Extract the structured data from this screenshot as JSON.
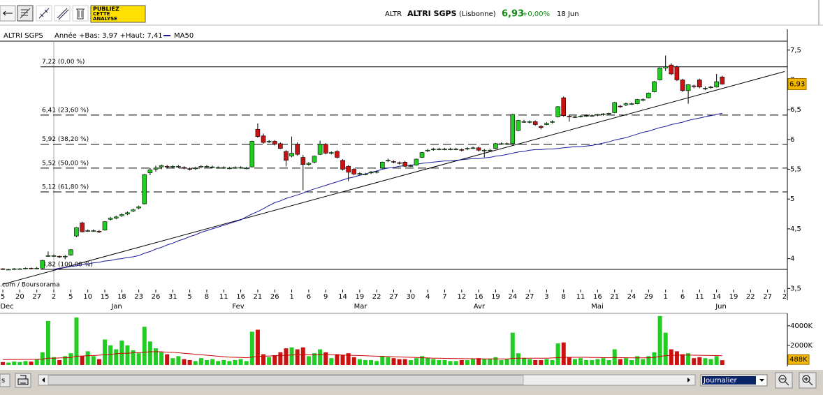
{
  "toolbar": {
    "button": [
      "PUBLIEZ",
      "CETTE",
      "ANALYSE"
    ]
  },
  "header": {
    "code": "ALTR",
    "name": "ALTRI SGPS",
    "market": "(Lisbonne)",
    "price": "6,93",
    "change": "+0,00%",
    "date": "18 Jun"
  },
  "footer": {
    "left_button": "s",
    "period": "Journalier"
  },
  "chart_data": {
    "type": "candlestick",
    "title": "ALTRI SGPS",
    "subtitle": "Année +Bas: 3,97 +Haut: 7,41",
    "source": ".com / Boursorama",
    "up_color": "#22cc22",
    "down_color": "#cc1111",
    "months": [
      "Dec",
      "Jan",
      "Fev",
      "Mar",
      "Avr",
      "Mai",
      "Jun"
    ],
    "categories": [
      "5",
      null,
      null,
      "20",
      null,
      null,
      "27",
      null,
      null,
      "2",
      null,
      null,
      "5",
      null,
      null,
      "10",
      null,
      null,
      "15",
      null,
      null,
      "18",
      null,
      null,
      "23",
      null,
      null,
      "26",
      null,
      null,
      "31",
      null,
      null,
      "5",
      null,
      null,
      "8",
      null,
      null,
      "11",
      null,
      null,
      "16",
      null,
      null,
      "21",
      null,
      null,
      "26",
      null,
      null,
      "1",
      null,
      null,
      "6",
      null,
      null,
      "9",
      null,
      null,
      "14",
      null,
      null,
      "19",
      null,
      null,
      "22",
      null,
      null,
      "27",
      null,
      null,
      "30",
      null,
      null,
      "4",
      null,
      null,
      "7",
      null,
      null,
      "12",
      null,
      null,
      "16",
      null,
      null,
      "19",
      null,
      null,
      "24",
      null,
      null,
      "27",
      null,
      null,
      "3",
      null,
      null,
      "8",
      null,
      null,
      "11",
      null,
      null,
      "16",
      null,
      null,
      "21",
      null,
      null,
      "24",
      null,
      null,
      "29",
      null,
      null,
      "1",
      null,
      null,
      "6",
      null,
      null,
      "11",
      null,
      null,
      "14",
      null,
      null,
      "19",
      null,
      null,
      "22",
      null,
      null,
      "27",
      null,
      null,
      "2"
    ],
    "candles": [
      [
        3.83,
        3.84,
        3.81,
        3.82
      ],
      [
        3.82,
        3.83,
        3.81,
        3.82
      ],
      [
        3.82,
        3.84,
        3.81,
        3.83
      ],
      [
        3.83,
        3.84,
        3.82,
        3.83
      ],
      [
        3.83,
        3.85,
        3.82,
        3.84
      ],
      [
        3.84,
        3.85,
        3.82,
        3.83
      ],
      [
        3.83,
        3.86,
        3.82,
        3.84
      ],
      [
        3.84,
        3.98,
        3.83,
        3.97
      ],
      [
        4.05,
        4.12,
        4.03,
        4.05
      ],
      [
        4.05,
        4.07,
        4.03,
        4.05
      ],
      [
        4.04,
        4.05,
        4.01,
        4.03
      ],
      [
        4.03,
        4.06,
        3.99,
        4.04
      ],
      [
        4.06,
        4.16,
        4.05,
        4.15
      ],
      [
        4.38,
        4.53,
        4.36,
        4.52
      ],
      [
        4.6,
        4.62,
        4.44,
        4.45
      ],
      [
        4.46,
        4.49,
        4.45,
        4.47
      ],
      [
        4.47,
        4.49,
        4.45,
        4.47
      ],
      [
        4.46,
        4.48,
        4.43,
        4.45
      ],
      [
        4.48,
        4.63,
        4.47,
        4.62
      ],
      [
        4.66,
        4.7,
        4.64,
        4.68
      ],
      [
        4.68,
        4.72,
        4.66,
        4.7
      ],
      [
        4.72,
        4.76,
        4.7,
        4.74
      ],
      [
        4.75,
        4.79,
        4.73,
        4.77
      ],
      [
        4.8,
        4.84,
        4.78,
        4.82
      ],
      [
        4.85,
        4.89,
        4.83,
        4.87
      ],
      [
        4.92,
        5.42,
        4.91,
        5.41
      ],
      [
        5.44,
        5.52,
        5.4,
        5.49
      ],
      [
        5.5,
        5.56,
        5.46,
        5.52
      ],
      [
        5.54,
        5.58,
        5.5,
        5.56
      ],
      [
        5.55,
        5.57,
        5.51,
        5.54
      ],
      [
        5.54,
        5.57,
        5.52,
        5.55
      ],
      [
        5.55,
        5.57,
        5.52,
        5.55
      ],
      [
        5.53,
        5.55,
        5.5,
        5.52
      ],
      [
        5.51,
        5.53,
        5.48,
        5.5
      ],
      [
        5.51,
        5.54,
        5.49,
        5.52
      ],
      [
        5.54,
        5.57,
        5.52,
        5.55
      ],
      [
        5.55,
        5.57,
        5.53,
        5.55
      ],
      [
        5.54,
        5.56,
        5.52,
        5.54
      ],
      [
        5.53,
        5.55,
        5.51,
        5.53
      ],
      [
        5.53,
        5.55,
        5.51,
        5.53
      ],
      [
        5.52,
        5.54,
        5.5,
        5.52
      ],
      [
        5.53,
        5.55,
        5.51,
        5.53
      ],
      [
        5.53,
        5.55,
        5.51,
        5.53
      ],
      [
        5.52,
        5.54,
        5.5,
        5.52
      ],
      [
        5.54,
        5.98,
        5.53,
        5.97
      ],
      [
        6.17,
        6.27,
        6.03,
        6.05
      ],
      [
        6.06,
        6.1,
        5.93,
        5.95
      ],
      [
        5.96,
        5.99,
        5.94,
        5.97
      ],
      [
        5.97,
        5.99,
        5.9,
        5.92
      ],
      [
        5.93,
        5.95,
        5.84,
        5.85
      ],
      [
        5.8,
        5.82,
        5.55,
        5.65
      ],
      [
        5.72,
        6.05,
        5.7,
        5.77
      ],
      [
        5.92,
        5.95,
        5.73,
        5.75
      ],
      [
        5.7,
        5.74,
        5.15,
        5.58
      ],
      [
        5.58,
        5.62,
        5.56,
        5.6
      ],
      [
        5.62,
        5.73,
        5.6,
        5.72
      ],
      [
        5.75,
        5.98,
        5.74,
        5.92
      ],
      [
        5.92,
        5.94,
        5.75,
        5.77
      ],
      [
        5.77,
        5.8,
        5.75,
        5.78
      ],
      [
        5.8,
        5.82,
        5.68,
        5.7
      ],
      [
        5.65,
        5.67,
        5.48,
        5.5
      ],
      [
        5.55,
        5.57,
        5.3,
        5.45
      ],
      [
        5.5,
        5.52,
        5.4,
        5.42
      ],
      [
        5.42,
        5.45,
        5.4,
        5.43
      ],
      [
        5.42,
        5.44,
        5.4,
        5.42
      ],
      [
        5.44,
        5.47,
        5.42,
        5.45
      ],
      [
        5.45,
        5.48,
        5.43,
        5.46
      ],
      [
        5.52,
        5.63,
        5.51,
        5.62
      ],
      [
        5.64,
        5.68,
        5.62,
        5.65
      ],
      [
        5.63,
        5.65,
        5.6,
        5.62
      ],
      [
        5.61,
        5.63,
        5.58,
        5.6
      ],
      [
        5.62,
        5.64,
        5.54,
        5.55
      ],
      [
        5.56,
        5.58,
        5.54,
        5.56
      ],
      [
        5.57,
        5.68,
        5.56,
        5.67
      ],
      [
        5.7,
        5.79,
        5.69,
        5.78
      ],
      [
        5.81,
        5.84,
        5.79,
        5.82
      ],
      [
        5.83,
        5.86,
        5.81,
        5.84
      ],
      [
        5.84,
        5.86,
        5.82,
        5.84
      ],
      [
        5.84,
        5.86,
        5.82,
        5.84
      ],
      [
        5.84,
        5.86,
        5.82,
        5.84
      ],
      [
        5.84,
        5.86,
        5.82,
        5.84
      ],
      [
        5.83,
        5.85,
        5.8,
        5.82
      ],
      [
        5.84,
        5.87,
        5.82,
        5.85
      ],
      [
        5.85,
        5.88,
        5.84,
        5.86
      ],
      [
        5.86,
        5.88,
        5.8,
        5.82
      ],
      [
        5.82,
        5.84,
        5.7,
        5.82
      ],
      [
        5.82,
        5.84,
        5.8,
        5.82
      ],
      [
        5.85,
        5.94,
        5.84,
        5.93
      ],
      [
        5.93,
        5.95,
        5.91,
        5.93
      ],
      [
        5.93,
        5.95,
        5.91,
        5.93
      ],
      [
        5.93,
        6.43,
        5.92,
        6.42
      ],
      [
        6.15,
        6.33,
        6.14,
        6.32
      ],
      [
        6.3,
        6.33,
        6.28,
        6.3
      ],
      [
        6.3,
        6.32,
        6.27,
        6.3
      ],
      [
        6.3,
        6.32,
        6.23,
        6.25
      ],
      [
        6.22,
        6.24,
        6.17,
        6.2
      ],
      [
        6.25,
        6.29,
        6.24,
        6.27
      ],
      [
        6.29,
        6.32,
        6.27,
        6.3
      ],
      [
        6.38,
        6.56,
        6.37,
        6.55
      ],
      [
        6.7,
        6.72,
        6.38,
        6.4
      ],
      [
        6.39,
        6.41,
        6.3,
        6.38
      ],
      [
        6.38,
        6.4,
        6.36,
        6.38
      ],
      [
        6.39,
        6.41,
        6.37,
        6.39
      ],
      [
        6.4,
        6.42,
        6.38,
        6.4
      ],
      [
        6.4,
        6.42,
        6.38,
        6.4
      ],
      [
        6.41,
        6.43,
        6.39,
        6.42
      ],
      [
        6.42,
        6.44,
        6.4,
        6.43
      ],
      [
        6.43,
        6.45,
        6.41,
        6.44
      ],
      [
        6.45,
        6.63,
        6.44,
        6.62
      ],
      [
        6.56,
        6.58,
        6.53,
        6.55
      ],
      [
        6.58,
        6.62,
        6.56,
        6.6
      ],
      [
        6.6,
        6.62,
        6.58,
        6.6
      ],
      [
        6.6,
        6.68,
        6.59,
        6.67
      ],
      [
        6.66,
        6.69,
        6.64,
        6.67
      ],
      [
        6.7,
        6.79,
        6.69,
        6.78
      ],
      [
        6.8,
        6.98,
        6.79,
        6.97
      ],
      [
        7.0,
        7.21,
        6.99,
        7.2
      ],
      [
        7.2,
        7.41,
        7.15,
        7.22
      ],
      [
        7.25,
        7.28,
        7.08,
        7.1
      ],
      [
        7.22,
        7.24,
        6.98,
        7.0
      ],
      [
        7.0,
        7.02,
        6.8,
        6.82
      ],
      [
        6.82,
        6.93,
        6.6,
        6.92
      ],
      [
        6.9,
        6.92,
        6.86,
        6.89
      ],
      [
        7.0,
        7.02,
        6.86,
        6.88
      ],
      [
        6.86,
        6.89,
        6.83,
        6.86
      ],
      [
        6.87,
        6.9,
        6.85,
        6.88
      ],
      [
        6.88,
        7.1,
        6.87,
        6.97
      ],
      [
        7.05,
        7.07,
        6.92,
        6.93
      ],
      null,
      null,
      null,
      null,
      null,
      null,
      null,
      null,
      null,
      null,
      null
    ],
    "series": [
      {
        "name": "MA50",
        "color": "#1a1aa0",
        "values": [
          null,
          null,
          null,
          null,
          null,
          null,
          null,
          null,
          null,
          3.82,
          3.84,
          3.85,
          3.87,
          3.88,
          3.9,
          3.91,
          3.93,
          3.94,
          3.96,
          3.97,
          3.99,
          4.0,
          4.02,
          4.03,
          4.05,
          4.09,
          4.12,
          4.16,
          4.19,
          4.23,
          4.26,
          4.3,
          4.33,
          4.37,
          4.4,
          4.44,
          4.47,
          4.5,
          4.53,
          4.56,
          4.59,
          4.62,
          4.65,
          4.7,
          4.75,
          4.79,
          4.84,
          4.89,
          4.94,
          4.97,
          5.01,
          5.04,
          5.07,
          5.1,
          5.14,
          5.17,
          5.2,
          5.23,
          5.26,
          5.29,
          5.32,
          5.35,
          5.37,
          5.4,
          5.42,
          5.45,
          5.47,
          5.5,
          5.52,
          5.53,
          5.55,
          5.56,
          5.57,
          5.58,
          5.6,
          5.61,
          5.62,
          5.63,
          5.64,
          5.64,
          5.65,
          5.66,
          5.67,
          5.68,
          5.68,
          5.69,
          5.7,
          5.72,
          5.73,
          5.75,
          5.77,
          5.79,
          5.8,
          5.82,
          5.83,
          5.83,
          5.84,
          5.84,
          5.85,
          5.86,
          5.87,
          5.88,
          5.88,
          5.89,
          5.9,
          5.92,
          5.94,
          5.96,
          5.99,
          6.01,
          6.03,
          6.06,
          6.09,
          6.12,
          6.14,
          6.17,
          6.2,
          6.22,
          6.25,
          6.27,
          6.29,
          6.32,
          6.34,
          6.36,
          6.38,
          6.4,
          6.42,
          6.44,
          null,
          null,
          null,
          null,
          null,
          null,
          null,
          null,
          null,
          null,
          null
        ]
      }
    ],
    "trendline": [
      3.57,
      7.14
    ],
    "levels": [
      {
        "label": "7,22 (0,00 %)",
        "value": 7.22,
        "dashed": false
      },
      {
        "label": "6,41 (23,60 %)",
        "value": 6.41,
        "dashed": true
      },
      {
        "label": "5,92 (38,20 %)",
        "value": 5.92,
        "dashed": true
      },
      {
        "label": "5,52 (50,00 %)",
        "value": 5.52,
        "dashed": true
      },
      {
        "label": "5,12 (61,80 %)",
        "value": 5.12,
        "dashed": true
      },
      {
        "label": "3,82 (100,00 %)",
        "value": 3.82,
        "dashed": false
      }
    ],
    "last": {
      "value": 6.93,
      "label": "6,93"
    },
    "ylim": [
      3.48,
      7.65
    ],
    "yticks": [
      {
        "value": 7.5,
        "label": "7,5"
      },
      7,
      {
        "value": 6.5,
        "label": "6,5"
      },
      6,
      {
        "value": 5.5,
        "label": "5,5"
      },
      5,
      {
        "value": 4.5,
        "label": "4,5"
      },
      4,
      {
        "value": 3.5,
        "label": "3,5"
      }
    ],
    "volume": {
      "color_ma": "#cc0000",
      "values": [
        300,
        250,
        350,
        300,
        400,
        350,
        600,
        1300,
        4500,
        800,
        500,
        900,
        1200,
        4850,
        900,
        1400,
        900,
        600,
        2600,
        2000,
        1600,
        2500,
        2000,
        1500,
        1200,
        3900,
        2400,
        1700,
        1300,
        1100,
        700,
        900,
        600,
        500,
        400,
        700,
        500,
        600,
        400,
        500,
        400,
        500,
        600,
        400,
        3400,
        3600,
        1100,
        800,
        1000,
        1300,
        1700,
        1800,
        1600,
        1800,
        900,
        1200,
        1600,
        1300,
        700,
        1100,
        1000,
        1200,
        800,
        600,
        500,
        500,
        400,
        900,
        800,
        700,
        600,
        600,
        500,
        700,
        900,
        700,
        600,
        500,
        500,
        400,
        400,
        500,
        500,
        600,
        700,
        600,
        600,
        800,
        500,
        600,
        3300,
        1200,
        700,
        600,
        500,
        500,
        600,
        500,
        2200,
        2300,
        800,
        600,
        700,
        500,
        500,
        600,
        700,
        500,
        1600,
        600,
        700,
        500,
        900,
        600,
        900,
        1300,
        5000,
        3300,
        1600,
        1400,
        1100,
        1200,
        700,
        800,
        700,
        600,
        900,
        488,
        null,
        null,
        null,
        null,
        null,
        null,
        null,
        null,
        null,
        null,
        null
      ],
      "ma": [
        550,
        550,
        560,
        560,
        570,
        570,
        580,
        600,
        700,
        700,
        720,
        740,
        760,
        900,
        920,
        950,
        970,
        1000,
        1050,
        1100,
        1150,
        1200,
        1200,
        1250,
        1250,
        1300,
        1350,
        1350,
        1350,
        1300,
        1300,
        1250,
        1200,
        1150,
        1100,
        1050,
        1000,
        950,
        900,
        850,
        800,
        780,
        760,
        740,
        800,
        880,
        900,
        920,
        940,
        960,
        1000,
        1020,
        1040,
        1060,
        1050,
        1050,
        1060,
        1050,
        1040,
        1030,
        1020,
        1000,
        980,
        960,
        940,
        920,
        900,
        880,
        860,
        840,
        820,
        800,
        780,
        760,
        740,
        720,
        700,
        690,
        680,
        670,
        660,
        650,
        640,
        640,
        630,
        630,
        620,
        620,
        620,
        610,
        680,
        690,
        690,
        690,
        690,
        690,
        690,
        720,
        750,
        780,
        780,
        780,
        780,
        780,
        770,
        760,
        750,
        740,
        760,
        750,
        740,
        730,
        730,
        730,
        740,
        760,
        880,
        940,
        980,
        1000,
        1010,
        1010,
        1000,
        990,
        980,
        970,
        960,
        950,
        null,
        null,
        null,
        null,
        null,
        null,
        null,
        null,
        null,
        null,
        null
      ],
      "ylim": [
        0,
        5200
      ],
      "yticks": [
        {
          "value": 4000,
          "label": "4000K"
        },
        {
          "value": 2000,
          "label": "2000K"
        }
      ],
      "last": {
        "value": 488,
        "label": "488K"
      }
    }
  }
}
